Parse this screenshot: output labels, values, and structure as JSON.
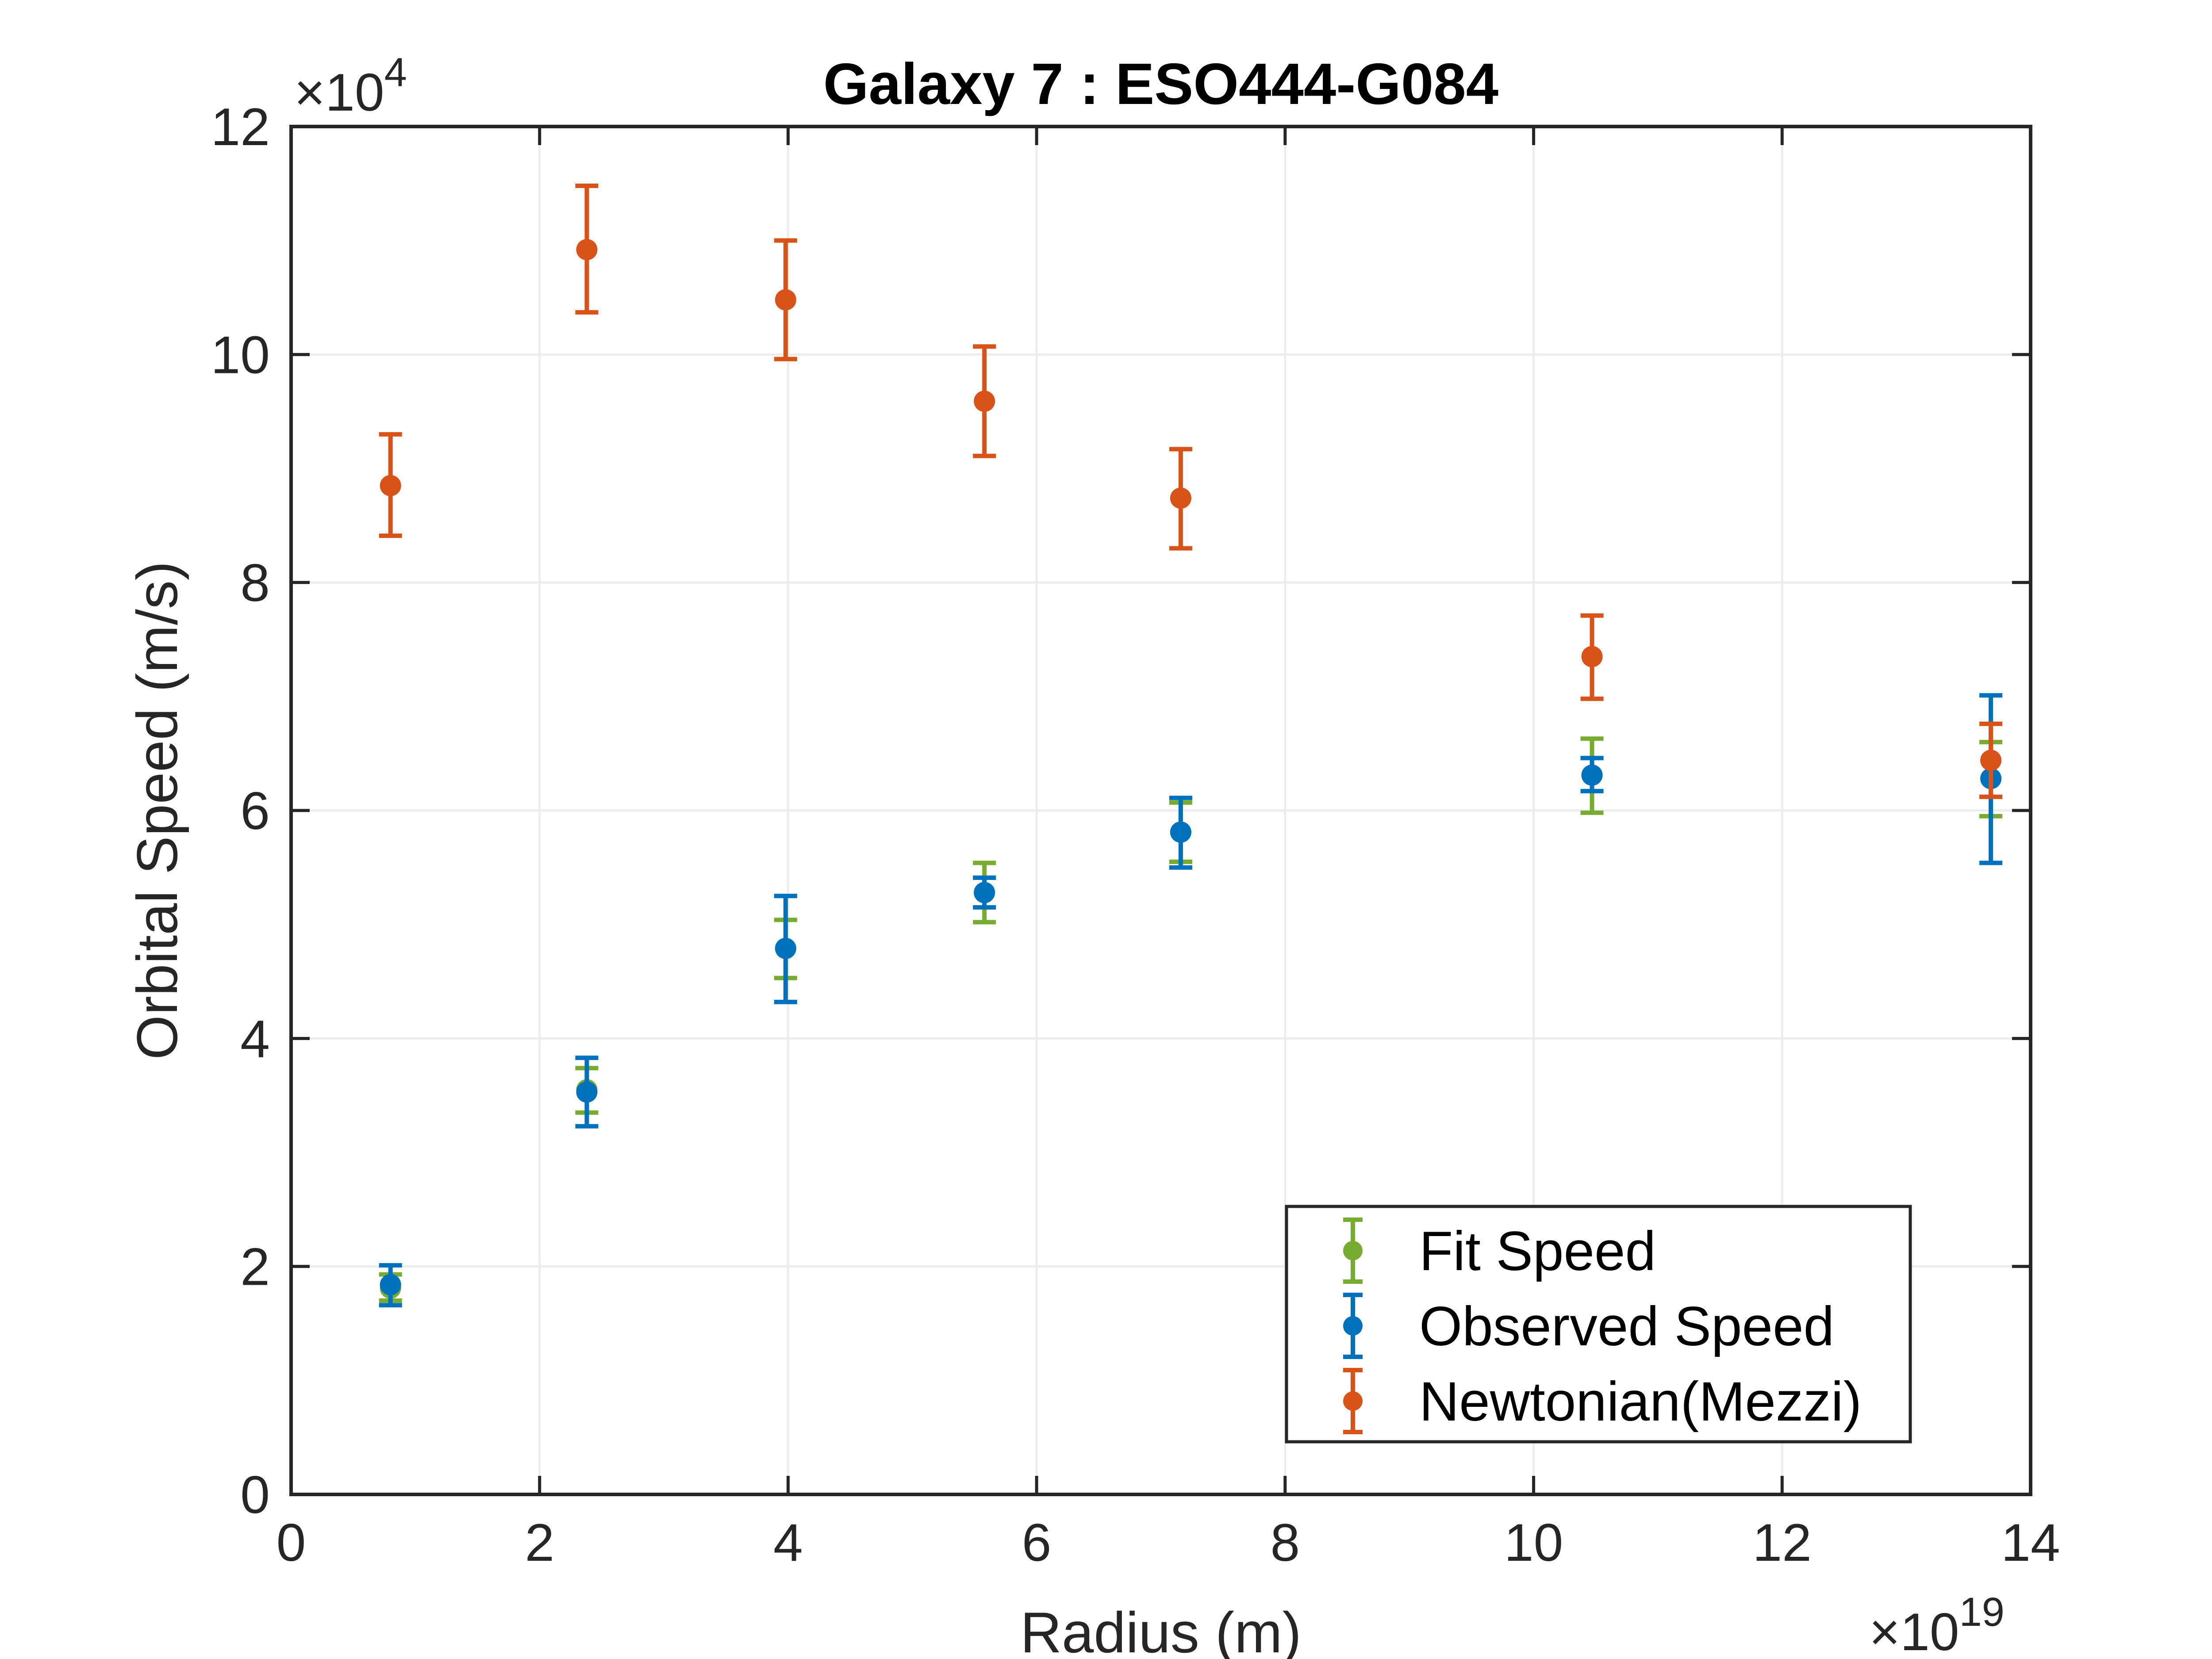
{
  "chart_data": {
    "type": "scatter",
    "title": "Galaxy 7 : ESO444-G084",
    "xlabel": "Radius (m)",
    "ylabel": "Orbital Speed (m/s)",
    "x_multiplier": {
      "base": "×10",
      "exponent": "19"
    },
    "y_multiplier": {
      "base": "×10",
      "exponent": "4"
    },
    "xlim": [
      0,
      14
    ],
    "ylim": [
      0,
      12
    ],
    "xticks": [
      0,
      2,
      4,
      6,
      8,
      10,
      12,
      14
    ],
    "yticks": [
      0,
      2,
      4,
      6,
      8,
      10,
      12
    ],
    "grid": true,
    "legend_position": "bottom-right",
    "series": [
      {
        "name": "Fit Speed",
        "color": "#77AC30",
        "points": [
          {
            "x": 0.8,
            "y": 1.81,
            "lo": 1.7,
            "hi": 1.93
          },
          {
            "x": 2.38,
            "y": 3.55,
            "lo": 3.35,
            "hi": 3.74
          },
          {
            "x": 3.98,
            "y": 4.79,
            "lo": 4.53,
            "hi": 5.04
          },
          {
            "x": 5.58,
            "y": 5.28,
            "lo": 5.02,
            "hi": 5.54
          },
          {
            "x": 7.16,
            "y": 5.81,
            "lo": 5.55,
            "hi": 6.07
          },
          {
            "x": 10.47,
            "y": 6.31,
            "lo": 5.98,
            "hi": 6.63
          },
          {
            "x": 13.68,
            "y": 6.28,
            "lo": 5.95,
            "hi": 6.6
          }
        ]
      },
      {
        "name": "Observed Speed",
        "color": "#0072BD",
        "points": [
          {
            "x": 0.8,
            "y": 1.84,
            "lo": 1.66,
            "hi": 2.01
          },
          {
            "x": 2.38,
            "y": 3.53,
            "lo": 3.23,
            "hi": 3.83
          },
          {
            "x": 3.98,
            "y": 4.79,
            "lo": 4.32,
            "hi": 5.25
          },
          {
            "x": 5.58,
            "y": 5.28,
            "lo": 5.15,
            "hi": 5.41
          },
          {
            "x": 7.16,
            "y": 5.81,
            "lo": 5.5,
            "hi": 6.11
          },
          {
            "x": 10.47,
            "y": 6.31,
            "lo": 6.17,
            "hi": 6.46
          },
          {
            "x": 13.68,
            "y": 6.28,
            "lo": 5.54,
            "hi": 7.01
          }
        ]
      },
      {
        "name": "Newtonian(Mezzi)",
        "color": "#D95319",
        "points": [
          {
            "x": 0.8,
            "y": 8.85,
            "lo": 8.41,
            "hi": 9.3
          },
          {
            "x": 2.38,
            "y": 10.92,
            "lo": 10.37,
            "hi": 11.48
          },
          {
            "x": 3.98,
            "y": 10.48,
            "lo": 9.96,
            "hi": 11.0
          },
          {
            "x": 5.58,
            "y": 9.59,
            "lo": 9.11,
            "hi": 10.07
          },
          {
            "x": 7.16,
            "y": 8.74,
            "lo": 8.3,
            "hi": 9.17
          },
          {
            "x": 10.47,
            "y": 7.35,
            "lo": 6.98,
            "hi": 7.71
          },
          {
            "x": 13.68,
            "y": 6.44,
            "lo": 6.12,
            "hi": 6.76
          }
        ]
      }
    ]
  }
}
